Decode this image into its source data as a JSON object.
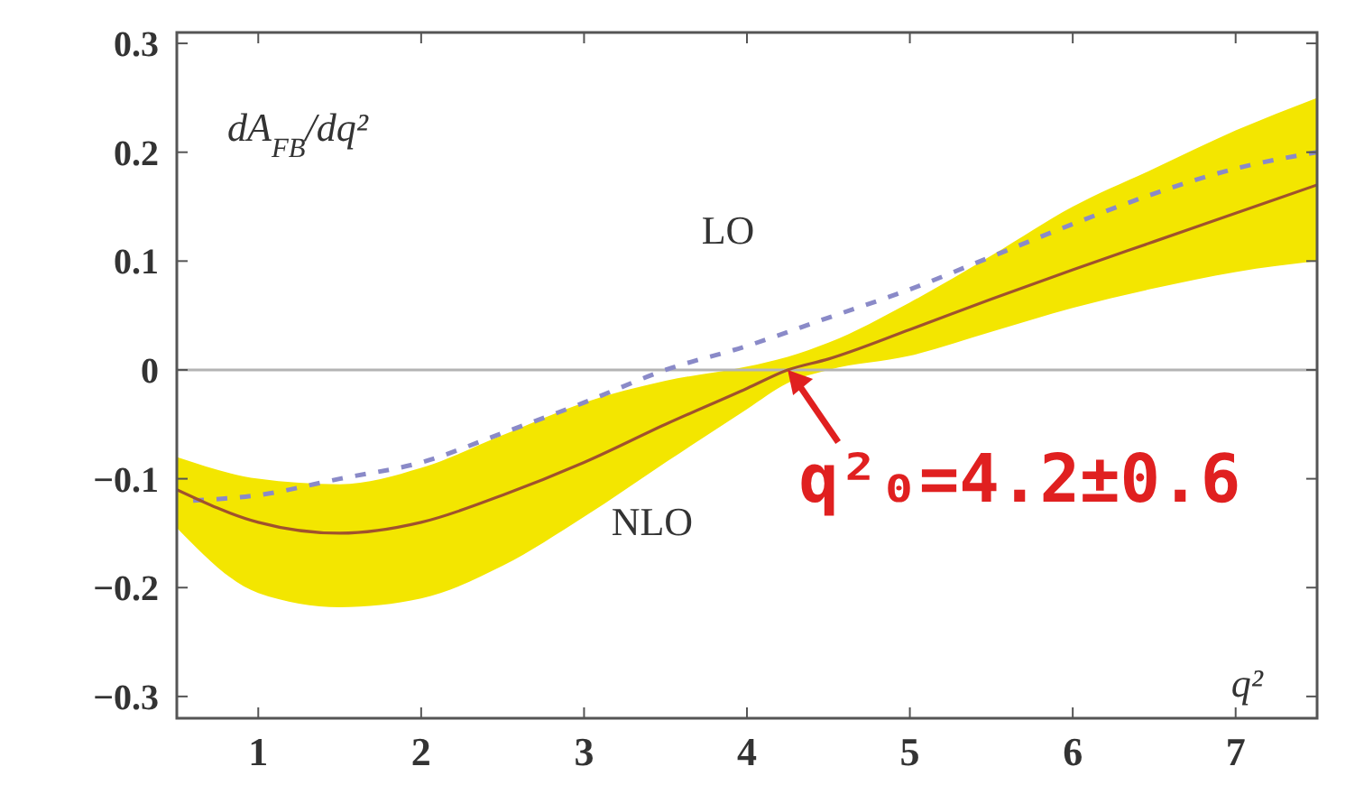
{
  "chart_data": {
    "type": "line",
    "xlabel": "q²",
    "ylabel": "dA$_{FB}$/dq²",
    "xlim": [
      0.5,
      7.5
    ],
    "ylim": [
      -0.32,
      0.31
    ],
    "xticks": [
      1,
      2,
      3,
      4,
      5,
      6,
      7
    ],
    "yticks": [
      {
        "value": -0.3,
        "label": "−0.3"
      },
      {
        "value": -0.2,
        "label": "−0.2"
      },
      {
        "value": -0.1,
        "label": "−0.1"
      },
      0,
      0.1,
      0.2,
      0.3
    ],
    "grid": false,
    "marker": "none",
    "ref_lines": [
      {
        "axis": "y",
        "value": 0,
        "color": "#b4b4b4"
      }
    ],
    "series": [
      {
        "name": "LO",
        "color": "#8a8ac8",
        "line_style": "dashed",
        "x": [
          0.6,
          1,
          1.5,
          2,
          2.5,
          3,
          3.5,
          4,
          4.5,
          5,
          5.5,
          6,
          6.5,
          7,
          7.5
        ],
        "values": [
          -0.12,
          -0.115,
          -0.1,
          -0.085,
          -0.058,
          -0.03,
          0,
          0.022,
          0.048,
          0.074,
          0.104,
          0.134,
          0.162,
          0.185,
          0.2
        ]
      },
      {
        "name": "NLO",
        "color": "#a0522d",
        "line_style": "solid",
        "x": [
          0.5,
          1,
          1.5,
          2,
          2.5,
          3,
          3.5,
          4,
          4.25,
          4.5,
          5,
          5.5,
          6,
          6.5,
          7,
          7.5
        ],
        "values": [
          -0.11,
          -0.14,
          -0.15,
          -0.14,
          -0.115,
          -0.085,
          -0.05,
          -0.017,
          0,
          0.01,
          0.037,
          0.065,
          0.092,
          0.118,
          0.144,
          0.17
        ],
        "upper": [
          -0.08,
          -0.1,
          -0.105,
          -0.09,
          -0.06,
          -0.03,
          -0.01,
          0.003,
          0.012,
          0.025,
          0.062,
          0.105,
          0.15,
          0.185,
          0.22,
          0.25
        ],
        "lower": [
          -0.145,
          -0.205,
          -0.218,
          -0.21,
          -0.18,
          -0.135,
          -0.085,
          -0.036,
          -0.012,
          0,
          0.013,
          0.035,
          0.057,
          0.075,
          0.09,
          0.1
        ]
      }
    ],
    "annotations": [
      {
        "text": "q²₀=4.2±0.6",
        "x": 4.25,
        "y": 0
      }
    ]
  }
}
